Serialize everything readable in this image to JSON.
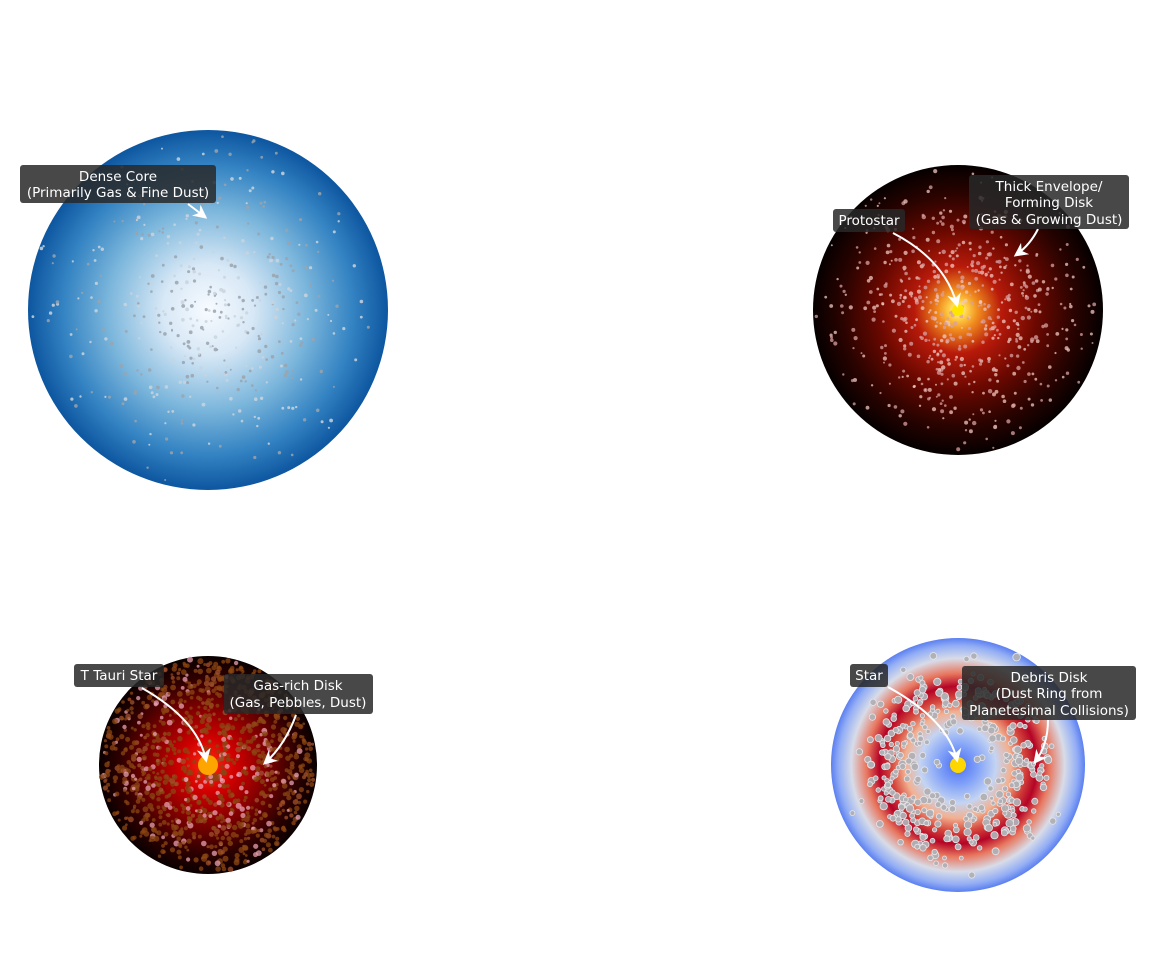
{
  "panels": [
    {
      "id": "dense-core",
      "labels": [
        {
          "lines": [
            "Dense Core",
            "(Primarily Gas & Fine Dust)"
          ]
        }
      ]
    },
    {
      "id": "protostar",
      "labels": [
        {
          "lines": [
            "Protostar"
          ]
        },
        {
          "lines": [
            "Thick Envelope/",
            "Forming Disk",
            "(Gas & Growing Dust)"
          ]
        }
      ]
    },
    {
      "id": "t-tauri",
      "labels": [
        {
          "lines": [
            "T Tauri Star"
          ]
        },
        {
          "lines": [
            "Gas-rich Disk",
            "(Gas, Pebbles, Dust)"
          ]
        }
      ]
    },
    {
      "id": "debris",
      "labels": [
        {
          "lines": [
            "Star"
          ]
        },
        {
          "lines": [
            "Debris Disk",
            "(Dust Ring from",
            "Planetesimal Collisions)"
          ]
        }
      ]
    }
  ],
  "colors": {
    "core_center": "#f7fbff",
    "core_edge": "#08519c",
    "proto_glow": "#ffd24a",
    "proto_edge": "#000000",
    "ttauri_star": "#ffa500",
    "ttauri_disk": "#cc0000",
    "debris_star": "#ffd700",
    "debris_ring": "#b40426",
    "debris_edge": "#5b7ff0"
  }
}
